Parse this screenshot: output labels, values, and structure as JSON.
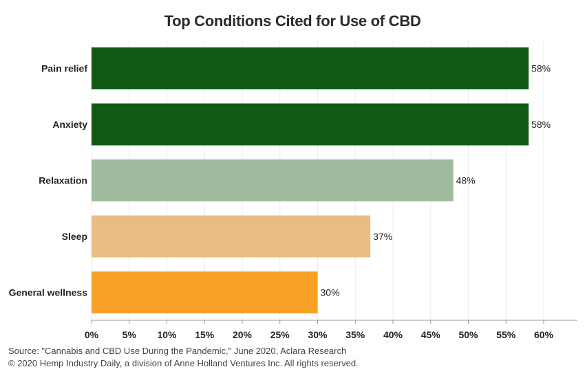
{
  "chart_data": {
    "type": "bar",
    "orientation": "horizontal",
    "title": "Top Conditions Cited for Use of CBD",
    "categories": [
      "Pain relief",
      "Anxiety",
      "Relaxation",
      "Sleep",
      "General wellness"
    ],
    "values": [
      58,
      58,
      48,
      37,
      30
    ],
    "data_labels": [
      "58%",
      "58%",
      "48%",
      "37%",
      "30%"
    ],
    "bar_colors": [
      "#115a14",
      "#115a14",
      "#9fbb9f",
      "#e8bc82",
      "#f8a126"
    ],
    "xlim": [
      0,
      60
    ],
    "x_ticks": [
      "0%",
      "5%",
      "10%",
      "15%",
      "20%",
      "25%",
      "30%",
      "35%",
      "40%",
      "45%",
      "50%",
      "55%",
      "60%"
    ],
    "grid": true
  },
  "footer": {
    "source": "Source: \"Cannabis and CBD Use During the Pandemic,\" June 2020, Aclara Research",
    "copyright": "© 2020 Hemp Industry Daily, a division of Anne Holland Ventures Inc. All rights reserved."
  }
}
